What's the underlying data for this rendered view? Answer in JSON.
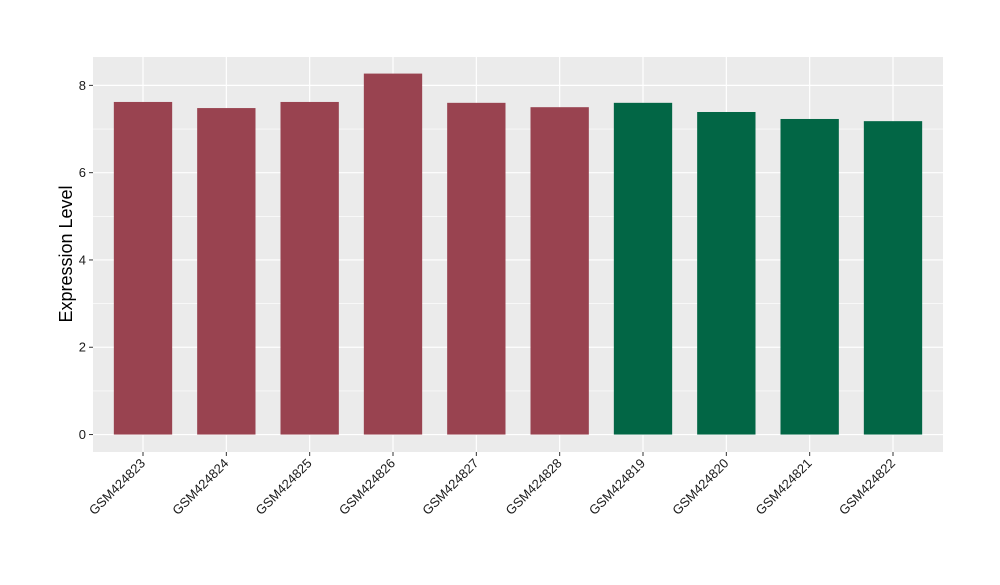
{
  "chart_data": {
    "type": "bar",
    "title": "",
    "xlabel": "",
    "ylabel": "Expression Level",
    "ylim": [
      -0.4,
      8.65
    ],
    "yticks": [
      0,
      2,
      4,
      6,
      8
    ],
    "categories": [
      "GSM424823",
      "GSM424824",
      "GSM424825",
      "GSM424826",
      "GSM424827",
      "GSM424828",
      "GSM424819",
      "GSM424820",
      "GSM424821",
      "GSM424822"
    ],
    "values": [
      7.62,
      7.48,
      7.62,
      8.27,
      7.6,
      7.5,
      7.6,
      7.39,
      7.23,
      7.18
    ],
    "bar_colors": [
      "#994350",
      "#994350",
      "#994350",
      "#994350",
      "#994350",
      "#994350",
      "#026645",
      "#026645",
      "#026645",
      "#026645"
    ],
    "panel_background": "#ebebeb",
    "grid_color": "#ffffff",
    "grid": true,
    "legend": "none"
  }
}
